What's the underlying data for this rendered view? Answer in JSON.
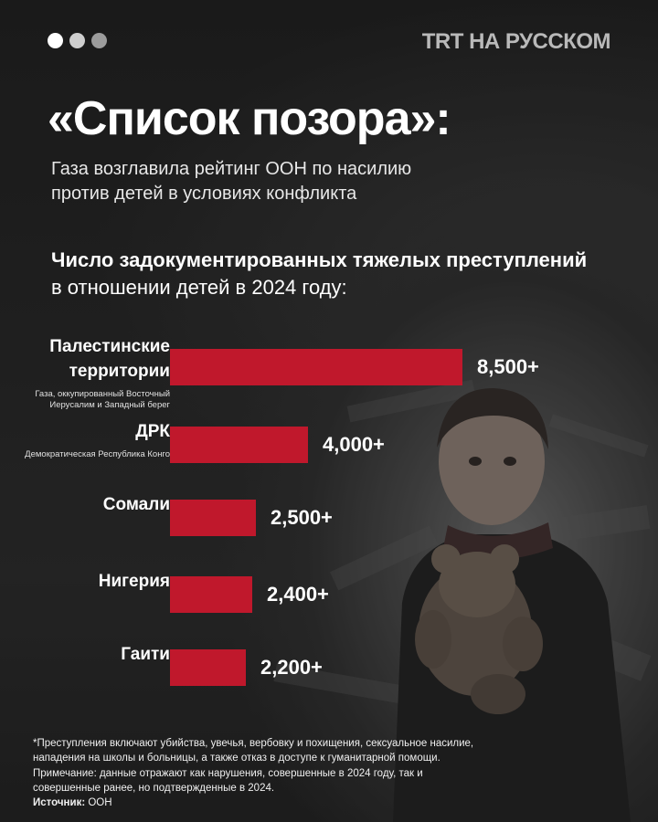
{
  "brand": "TRT НА РУССКОМ",
  "dot_colors": [
    "#ffffff",
    "#cfcfcf",
    "#9c9c9c"
  ],
  "title": "«Список позора»:",
  "subtitle": [
    "Газа возглавила рейтинг ООН по насилию",
    "против детей в условиях конфликта"
  ],
  "heading": {
    "strong": "Число задокументированных тяжелых преступлений",
    "light": "в отношении детей в 2024 году:"
  },
  "footnote": {
    "lines": [
      "*Преступления включают убийства, увечья, вербовку и похищения, сексуальное насилие,",
      "нападения на школы и больницы, а также отказ в доступе к гуманитарной помощи.",
      "Примечание: данные отражают как нарушения, совершенные в 2024 году, так и",
      "совершенные ранее, но подтвержденные в 2024."
    ],
    "source_label": "Источник:",
    "source_value": " ООН"
  },
  "colors": {
    "bar": "#c0182c",
    "background": "#1e1e1e"
  },
  "chart_data": {
    "type": "bar",
    "orientation": "horizontal",
    "title": "Число задокументированных тяжелых преступлений в отношении детей в 2024 году:",
    "categories": [
      {
        "name": "Палестинские территории",
        "name_lines": [
          "Палестинские",
          "территории"
        ],
        "sub": [
          "Газа, оккупированный Восточный",
          "Иерусалим и Западный берег"
        ]
      },
      {
        "name": "ДРК",
        "name_lines": [
          "ДРК"
        ],
        "sub": [
          "Демократическая Республика Конго"
        ]
      },
      {
        "name": "Сомали",
        "name_lines": [
          "Сомали"
        ],
        "sub": []
      },
      {
        "name": "Нигерия",
        "name_lines": [
          "Нигерия"
        ],
        "sub": []
      },
      {
        "name": "Гаити",
        "name_lines": [
          "Гаити"
        ],
        "sub": []
      }
    ],
    "values": [
      8500,
      4000,
      2500,
      2400,
      2200
    ],
    "value_labels": [
      "8,500+",
      "4,000+",
      "2,500+",
      "2,400+",
      "2,200+"
    ],
    "xlim": [
      0,
      8500
    ],
    "grid": false,
    "legend": "none"
  }
}
